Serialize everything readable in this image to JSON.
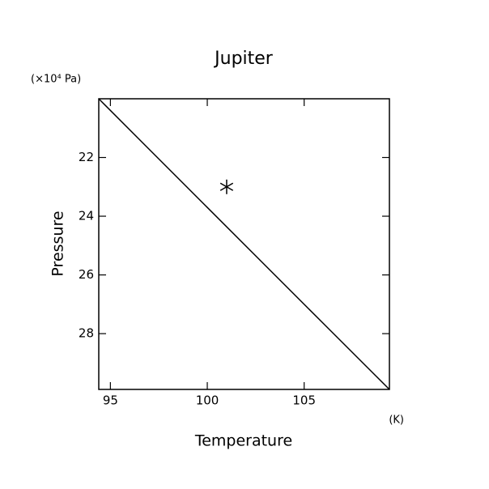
{
  "chart_data": {
    "type": "line",
    "title": "Jupiter",
    "xlabel": "Temperature",
    "ylabel": "Pressure",
    "x_unit": "(K)",
    "y_unit": "(×10⁴ Pa)",
    "xlim": [
      94.4,
      109.4
    ],
    "ylim": [
      20,
      29.9
    ],
    "y_inverted": true,
    "xticks": [
      95,
      100,
      105
    ],
    "yticks": [
      22,
      24,
      26,
      28
    ],
    "series": [
      {
        "style": "line",
        "color": "#000000",
        "x": [
          94.4,
          97,
          100,
          103,
          106,
          109.4
        ],
        "y": [
          20,
          21.72,
          23.7,
          25.68,
          27.66,
          29.9
        ]
      },
      {
        "style": "marker",
        "color": "#000000",
        "x": [
          101
        ],
        "y": [
          23
        ]
      }
    ]
  }
}
